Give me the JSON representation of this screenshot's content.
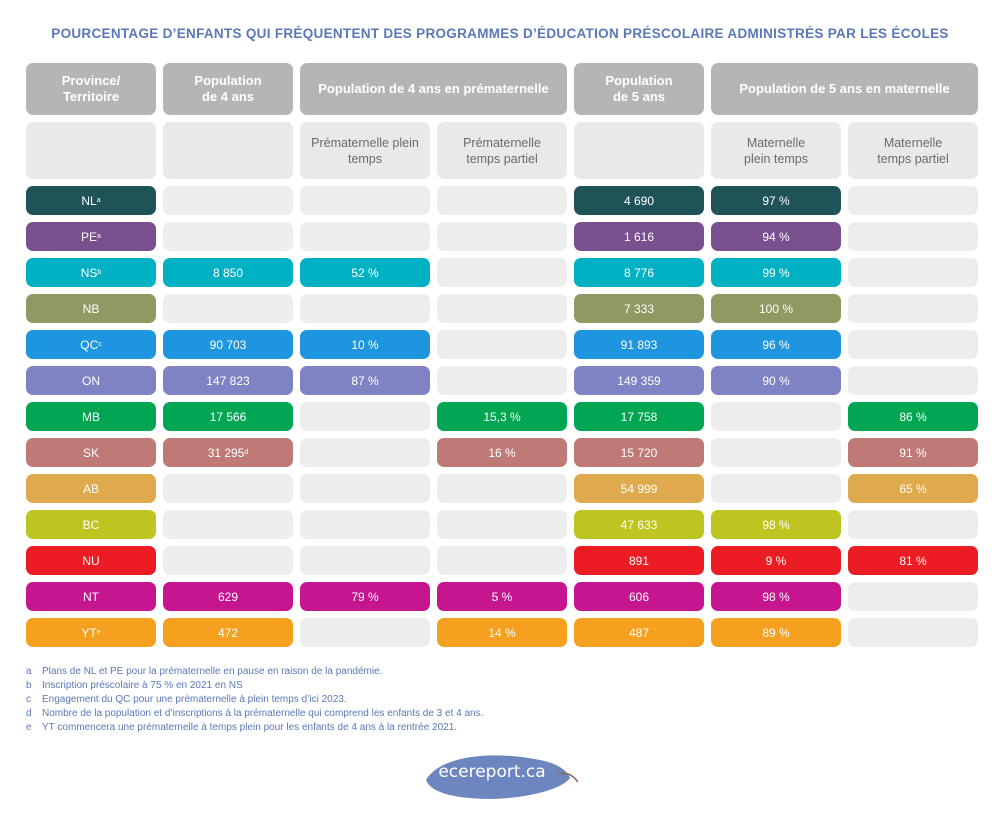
{
  "title": "POURCENTAGE D’ENFANTS QUI FRÉQUENTENT DES PROGRAMMES D’ÉDUCATION PRÉSCOLAIRE ADMINISTRÉS PAR LES ÉCOLES",
  "headers": {
    "province_l1": "Province/",
    "province_l2": "Territoire",
    "pop4_l1": "Population",
    "pop4_l2": "de 4 ans",
    "prek_group": "Population de 4 ans en prématernelle",
    "pop5_l1": "Population",
    "pop5_l2": "de 5 ans",
    "k_group": "Population de 5 ans en maternelle"
  },
  "subheaders": {
    "prek_full": "Prématernelle plein temps",
    "prek_part": "Prématernelle temps partiel",
    "k_full_l1": "Maternelle",
    "k_full_l2": "plein temps",
    "k_part_l1": "Maternelle",
    "k_part_l2": "temps partiel"
  },
  "rows": [
    {
      "province": "NL",
      "sup": "a",
      "color": "#1e5457",
      "pop4": "",
      "pop4_sup": "",
      "prek_full": "",
      "prek_part": "",
      "pop5": "4 690",
      "k_full": "97 %",
      "k_part": ""
    },
    {
      "province": "PE",
      "sup": "a",
      "color": "#7a4f8f",
      "pop4": "",
      "pop4_sup": "",
      "prek_full": "",
      "prek_part": "",
      "pop5": "1 616",
      "k_full": "94 %",
      "k_part": ""
    },
    {
      "province": "NS",
      "sup": "b",
      "color": "#00b1c4",
      "pop4": "8 850",
      "pop4_sup": "",
      "prek_full": "52 %",
      "prek_part": "",
      "pop5": "8 776",
      "k_full": "99 %",
      "k_part": ""
    },
    {
      "province": "NB",
      "sup": "",
      "color": "#8f9a63",
      "pop4": "",
      "pop4_sup": "",
      "prek_full": "",
      "prek_part": "",
      "pop5": "7 333",
      "k_full": "100 %",
      "k_part": ""
    },
    {
      "province": "QC",
      "sup": "c",
      "color": "#1e95df",
      "pop4": "90 703",
      "pop4_sup": "",
      "prek_full": "10 %",
      "prek_part": "",
      "pop5": "91 893",
      "k_full": "96 %",
      "k_part": ""
    },
    {
      "province": "ON",
      "sup": "",
      "color": "#7f83c4",
      "pop4": "147 823",
      "pop4_sup": "",
      "prek_full": "87 %",
      "prek_part": "",
      "pop5": "149 359",
      "k_full": "90 %",
      "k_part": ""
    },
    {
      "province": "MB",
      "sup": "",
      "color": "#00a651",
      "pop4": "17 566",
      "pop4_sup": "",
      "prek_full": "",
      "prek_part": "15,3 %",
      "pop5": "17 758",
      "k_full": "",
      "k_part": "86 %"
    },
    {
      "province": "SK",
      "sup": "",
      "color": "#bf7a76",
      "pop4": "31 295",
      "pop4_sup": "d",
      "prek_full": "",
      "prek_part": "16 %",
      "pop5": "15 720",
      "k_full": "",
      "k_part": "91 %"
    },
    {
      "province": "AB",
      "sup": "",
      "color": "#dfaa4d",
      "pop4": "",
      "pop4_sup": "",
      "prek_full": "",
      "prek_part": "",
      "pop5": "54 999",
      "k_full": "",
      "k_part": "65 %"
    },
    {
      "province": "BC",
      "sup": "",
      "color": "#bfc520",
      "pop4": "",
      "pop4_sup": "",
      "prek_full": "",
      "prek_part": "",
      "pop5": "47 633",
      "k_full": "98 %",
      "k_part": ""
    },
    {
      "province": "NU",
      "sup": "",
      "color": "#ec1c24",
      "pop4": "",
      "pop4_sup": "",
      "prek_full": "",
      "prek_part": "",
      "pop5": "891",
      "k_full": "9 %",
      "k_part": "81 %"
    },
    {
      "province": "NT",
      "sup": "",
      "color": "#c5158f",
      "pop4": "629",
      "pop4_sup": "",
      "prek_full": "79 %",
      "prek_part": "5 %",
      "pop5": "606",
      "k_full": "98 %",
      "k_part": ""
    },
    {
      "province": "YT",
      "sup": "e",
      "color": "#f5a11f",
      "pop4": "472",
      "pop4_sup": "",
      "prek_full": "",
      "prek_part": "14 %",
      "pop5": "487",
      "k_full": "89 %",
      "k_part": ""
    }
  ],
  "notes": [
    {
      "letter": "a",
      "text": "Plans de NL et PE pour la prématernelle en pause en raison de la pandémie."
    },
    {
      "letter": "b",
      "text": "Inscription préscolaire à 75 % en 2021 en NS"
    },
    {
      "letter": "c",
      "text": "Engagement du QC pour une prématernelle à plein temps d’ici 2023."
    },
    {
      "letter": "d",
      "text": "Nombre de la population et d’inscriptions à la prématernelle qui comprend les enfants de 3 et 4 ans."
    },
    {
      "letter": "e",
      "text": "YT commencera une prématernelle à temps plein pour les enfants de 4 ans à la rentrée 2021."
    }
  ],
  "logo": {
    "text": "ecereport.ca",
    "leaf_color": "#6d86c0"
  }
}
